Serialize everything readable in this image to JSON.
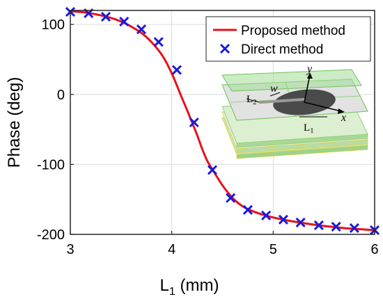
{
  "chart_data": {
    "type": "line",
    "xlabel": "L",
    "xlabel_sub": "1",
    "xlabel_unit": " (mm)",
    "ylabel": "Phase (deg)",
    "xlim": [
      3,
      6
    ],
    "ylim": [
      -200,
      120
    ],
    "xticks": [
      3,
      4,
      5,
      6
    ],
    "yticks": [
      100,
      0,
      -100,
      -200
    ],
    "grid": true,
    "legend_position": "top-right",
    "colors": {
      "line": "#e8101c",
      "marker": "#1a1adc"
    },
    "series": [
      {
        "name": "Proposed method",
        "style": "line",
        "x": [
          3.0,
          3.15,
          3.3,
          3.45,
          3.6,
          3.75,
          3.9,
          4.0,
          4.1,
          4.15,
          4.2,
          4.25,
          4.3,
          4.35,
          4.4,
          4.5,
          4.6,
          4.7,
          4.8,
          4.95,
          5.1,
          5.3,
          5.5,
          5.7,
          5.9,
          6.0
        ],
        "y": [
          119,
          117,
          113,
          107,
          97,
          82,
          57,
          30,
          -5,
          -22,
          -40,
          -58,
          -78,
          -95,
          -107,
          -130,
          -148,
          -160,
          -167,
          -174,
          -179,
          -184,
          -188,
          -191,
          -193,
          -194
        ]
      },
      {
        "name": "Direct method",
        "style": "markers",
        "marker": "x",
        "x": [
          3.0,
          3.18,
          3.35,
          3.53,
          3.7,
          3.87,
          4.05,
          4.22,
          4.4,
          4.58,
          4.75,
          4.93,
          5.1,
          5.27,
          5.45,
          5.62,
          5.8,
          6.0
        ],
        "y": [
          118,
          116,
          111,
          104,
          93,
          75,
          35,
          -40,
          -108,
          -148,
          -165,
          -173,
          -179,
          -183,
          -187,
          -189,
          -191,
          -194
        ]
      }
    ],
    "inset_labels": {
      "y": "y",
      "x": "x",
      "w": "w",
      "L2": "L",
      "L2_sub": "2",
      "L1": "L",
      "L1_sub": "1"
    }
  }
}
